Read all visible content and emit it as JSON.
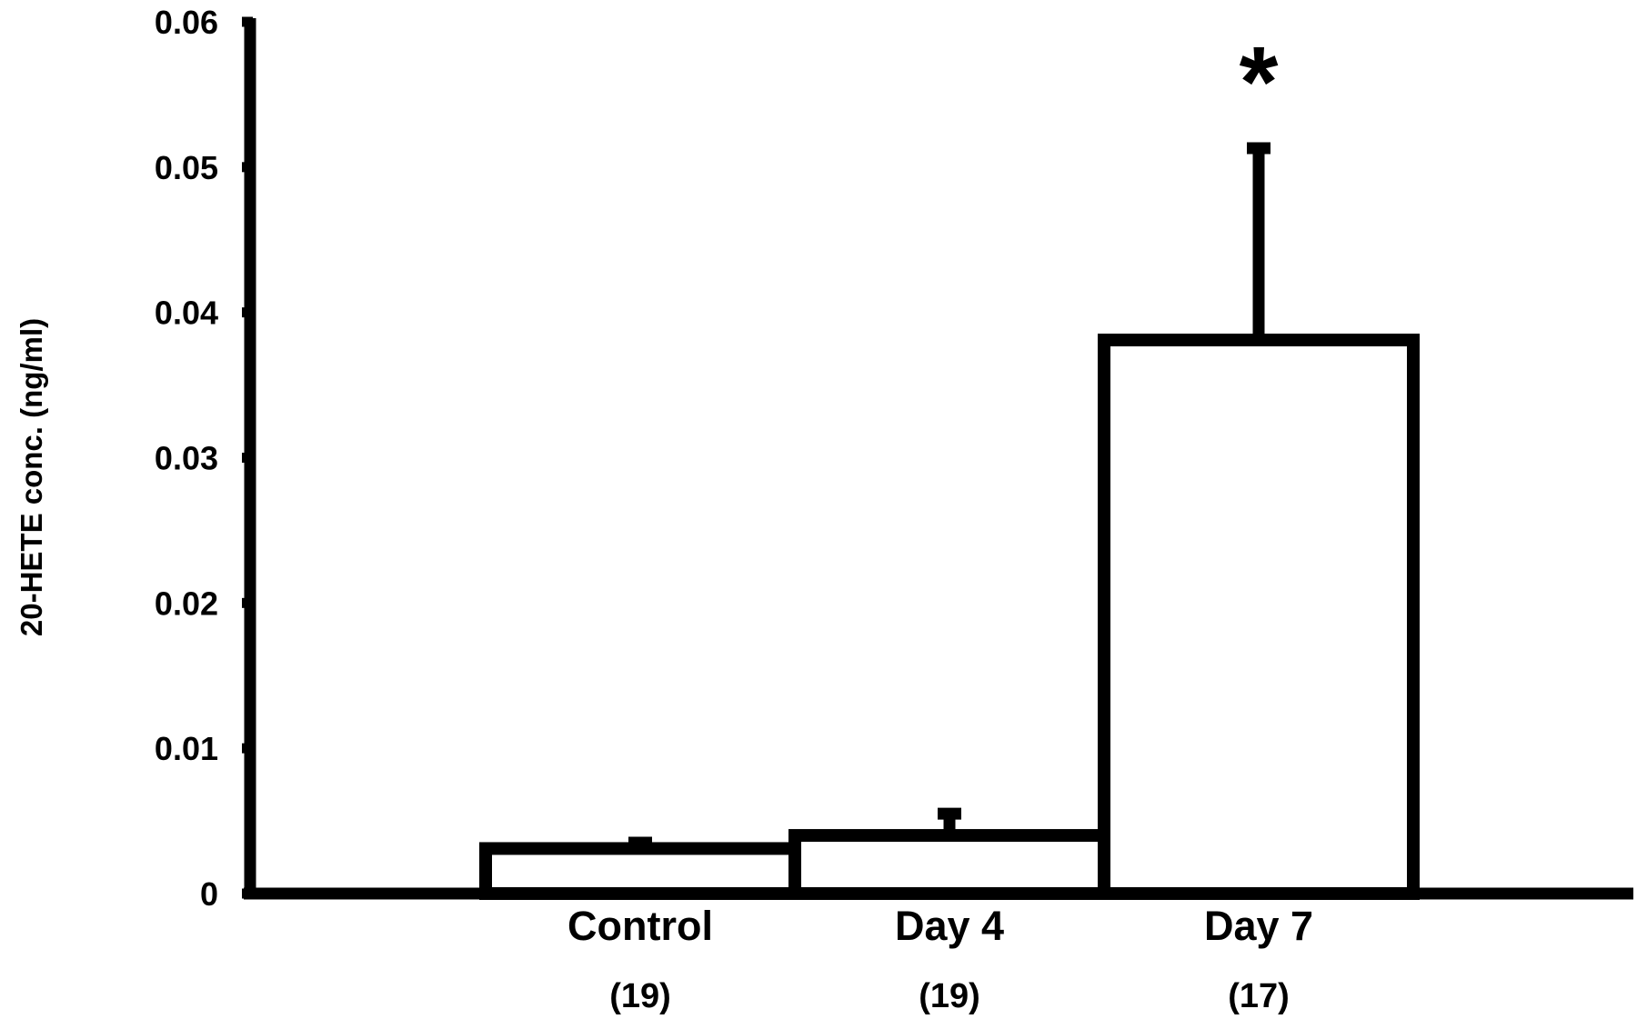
{
  "chart_data": {
    "type": "bar",
    "title": "",
    "xlabel": "",
    "ylabel": "20-HETE conc. (ng/ml)",
    "ylim": [
      0,
      0.06
    ],
    "yticks": [
      0,
      0.01,
      0.02,
      0.03,
      0.04,
      0.05,
      0.06
    ],
    "ytick_labels": [
      "0",
      "0.01",
      "0.02",
      "0.03",
      "0.04",
      "0.05",
      "0.06"
    ],
    "categories": [
      "Control",
      "Day 4",
      "Day 7"
    ],
    "sample_sizes": [
      "(19)",
      "(19)",
      "(17)"
    ],
    "values": [
      0.0031,
      0.004,
      0.0381
    ],
    "error_upper": [
      0.0035,
      0.0055,
      0.0513
    ],
    "annotations": [
      {
        "category": "Day 7",
        "text": "*"
      }
    ],
    "grid": false,
    "legend": "none"
  },
  "colors": {
    "bar_fill": "#ffffff",
    "stroke": "#000000"
  }
}
